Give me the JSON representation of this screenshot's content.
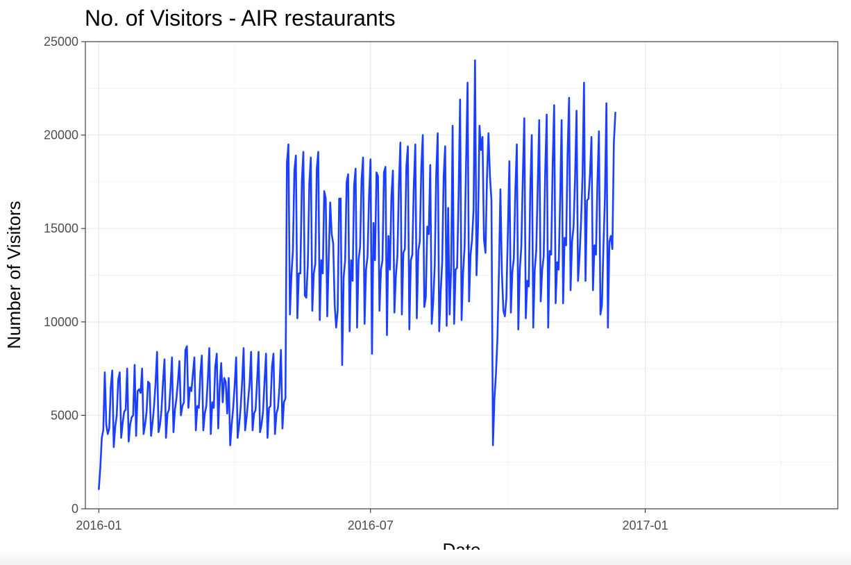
{
  "chart_data": {
    "type": "line",
    "title": "No. of Visitors - AIR restaurants",
    "xlabel": "Date",
    "ylabel": "Number of Visitors",
    "x_ticks": [
      "2016-01",
      "2016-07",
      "2017-01"
    ],
    "y_ticks": [
      0,
      5000,
      10000,
      15000,
      20000,
      25000
    ],
    "xlim": [
      "2015-12-23",
      "2017-05-10"
    ],
    "ylim": [
      0,
      25000
    ],
    "grid": true,
    "line_color": "#1a3fff",
    "series": [
      {
        "start_date": "2016-01-01",
        "interval": "1 day",
        "values": [
          1050,
          2200,
          3800,
          4200,
          7300,
          4500,
          4000,
          4300,
          6500,
          7400,
          3300,
          4400,
          5000,
          6900,
          7300,
          3800,
          4600,
          5200,
          5300,
          7500,
          3600,
          4500,
          4900,
          5000,
          7700,
          3900,
          6300,
          6400,
          6200,
          7500,
          4000,
          4500,
          5200,
          6800,
          6700,
          3900,
          4600,
          5500,
          6700,
          8400,
          4100,
          4500,
          5300,
          6800,
          8000,
          3800,
          5100,
          5300,
          6500,
          8100,
          4100,
          5300,
          5900,
          6800,
          7900,
          5000,
          5500,
          5700,
          8500,
          8700,
          5400,
          6500,
          6300,
          7200,
          8100,
          4200,
          5500,
          5400,
          7200,
          8200,
          4200,
          5100,
          5500,
          6900,
          8600,
          4000,
          5700,
          5400,
          7600,
          8300,
          4300,
          6600,
          7800,
          5700,
          7000,
          6800,
          5100,
          7000,
          3400,
          4500,
          5400,
          6600,
          8100,
          3800,
          4500,
          5400,
          6800,
          8600,
          4200,
          4900,
          5800,
          6700,
          8400,
          4200,
          5100,
          5300,
          6800,
          8400,
          4100,
          4500,
          5200,
          6800,
          8300,
          3800,
          5400,
          5500,
          7600,
          8300,
          4000,
          5100,
          5400,
          6500,
          8500,
          4300,
          5700,
          5900,
          18500,
          19500,
          10400,
          12500,
          13800,
          18100,
          18900,
          10200,
          12600,
          12600,
          17500,
          19100,
          11400,
          11300,
          13100,
          17400,
          18800,
          10600,
          12600,
          13100,
          18200,
          19100,
          10100,
          13300,
          12600,
          17000,
          16600,
          10300,
          13400,
          16400,
          14700,
          14200,
          10900,
          9700,
          10600,
          16600,
          16600,
          7700,
          12400,
          13300,
          17500,
          17900,
          9500,
          13300,
          12200,
          17300,
          18200,
          9700,
          13300,
          14000,
          17600,
          18800,
          9900,
          12800,
          13500,
          16700,
          18700,
          8300,
          15300,
          13300,
          18000,
          17800,
          10600,
          12800,
          13300,
          18000,
          18300,
          9300,
          14600,
          12800,
          16700,
          18100,
          10500,
          12500,
          13500,
          17300,
          19600,
          10400,
          13700,
          13900,
          18300,
          19400,
          9600,
          13300,
          13600,
          17300,
          19500,
          10200,
          13800,
          14300,
          18200,
          20000,
          10800,
          11300,
          15100,
          14700,
          18400,
          9900,
          11100,
          13000,
          17900,
          20100,
          9500,
          11600,
          13200,
          17800,
          19400,
          9800,
          16100,
          10400,
          12900,
          20500,
          9900,
          12800,
          12900,
          16800,
          21900,
          10100,
          12600,
          14000,
          18500,
          22800,
          11100,
          13600,
          14400,
          16000,
          24000,
          12500,
          15100,
          20500,
          19200,
          19900,
          14400,
          13700,
          17700,
          20100,
          17800,
          16500,
          3400,
          5900,
          7200,
          9100,
          12600,
          17100,
          12600,
          10600,
          10300,
          11300,
          14800,
          18600,
          10500,
          12700,
          13400,
          17000,
          19500,
          9600,
          12800,
          14000,
          17700,
          20900,
          10200,
          12200,
          11900,
          17000,
          20000,
          9700,
          12800,
          13800,
          17300,
          20800,
          11100,
          12800,
          13500,
          18000,
          21100,
          9700,
          13800,
          13600,
          18400,
          21600,
          11000,
          13200,
          12800,
          16500,
          20800,
          11000,
          14500,
          14100,
          19000,
          22000,
          11700,
          14300,
          15100,
          17700,
          21300,
          12200,
          13500,
          15300,
          17800,
          22800,
          12200,
          16500,
          16600,
          17900,
          19900,
          11700,
          14100,
          13600,
          17500,
          20200,
          10400,
          10900,
          14000,
          16600,
          21700,
          9700,
          14300,
          14600,
          13900,
          19600,
          21200
        ]
      }
    ]
  }
}
